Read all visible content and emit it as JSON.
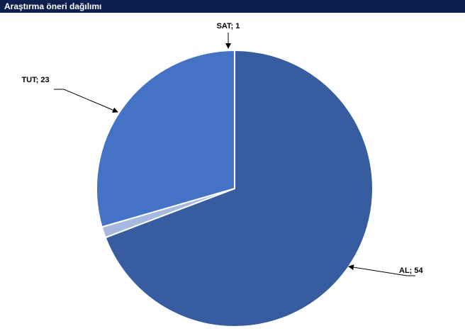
{
  "header": {
    "title": "Araştırma öneri dağılımı",
    "background": "#0d1f4f",
    "text_color": "#ffffff"
  },
  "chart_data": {
    "type": "pie",
    "title": "Araştırma öneri dağılımı",
    "slices": [
      {
        "label": "AL",
        "value": 54,
        "data_label": "AL; 54",
        "color": "#375c9f"
      },
      {
        "label": "SAT",
        "value": 1,
        "data_label": "SAT; 1",
        "color": "#a8b9e0"
      },
      {
        "label": "TUT",
        "value": 23,
        "data_label": "TUT; 23",
        "color": "#4472c4"
      }
    ],
    "start_angle_deg": 0,
    "direction": "clockwise",
    "legend": "none",
    "data_labels": "outside with leader arrows"
  }
}
